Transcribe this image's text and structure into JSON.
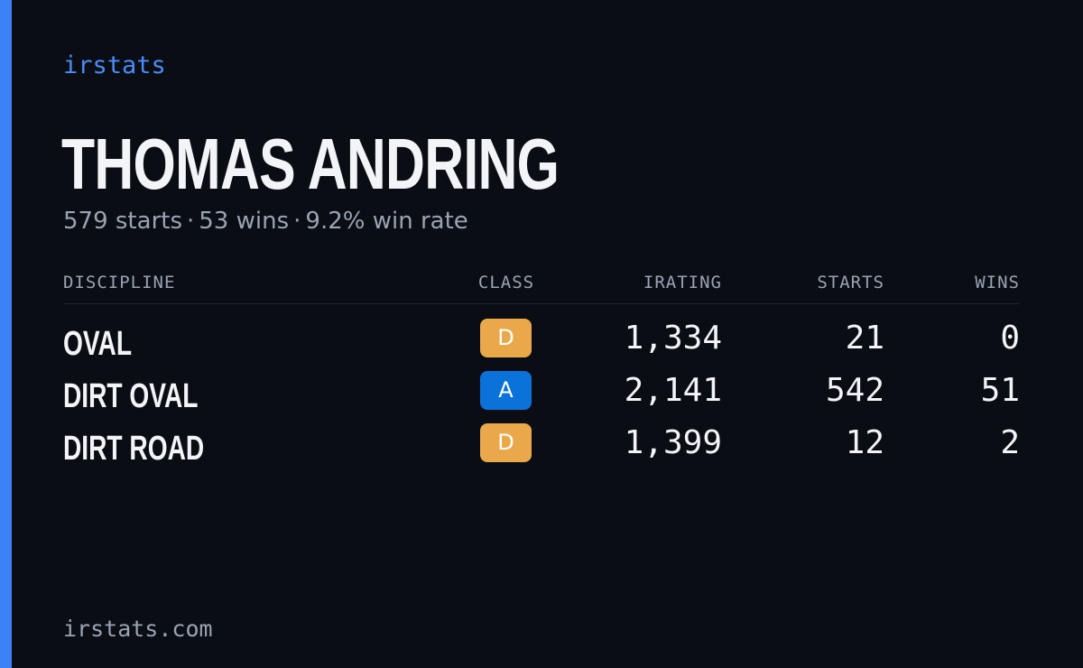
{
  "brand": {
    "name": "irstats",
    "accent_color": "#3b82f6"
  },
  "driver": {
    "name": "THOMAS ANDRING",
    "summary": {
      "starts": "579 starts",
      "wins": "53 wins",
      "win_rate": "9.2% win rate",
      "separator": "·"
    }
  },
  "table": {
    "headers": {
      "discipline": "DISCIPLINE",
      "class": "CLASS",
      "irating": "IRATING",
      "starts": "STARTS",
      "wins": "WINS"
    },
    "rows": [
      {
        "discipline": "OVAL",
        "class": "D",
        "class_color": "#e9a94a",
        "irating": "1,334",
        "starts": "21",
        "wins": "0"
      },
      {
        "discipline": "DIRT OVAL",
        "class": "A",
        "class_color": "#0a72d8",
        "irating": "2,141",
        "starts": "542",
        "wins": "51"
      },
      {
        "discipline": "DIRT ROAD",
        "class": "D",
        "class_color": "#e9a94a",
        "irating": "1,399",
        "starts": "12",
        "wins": "2"
      }
    ]
  },
  "footer": {
    "url": "irstats.com"
  }
}
